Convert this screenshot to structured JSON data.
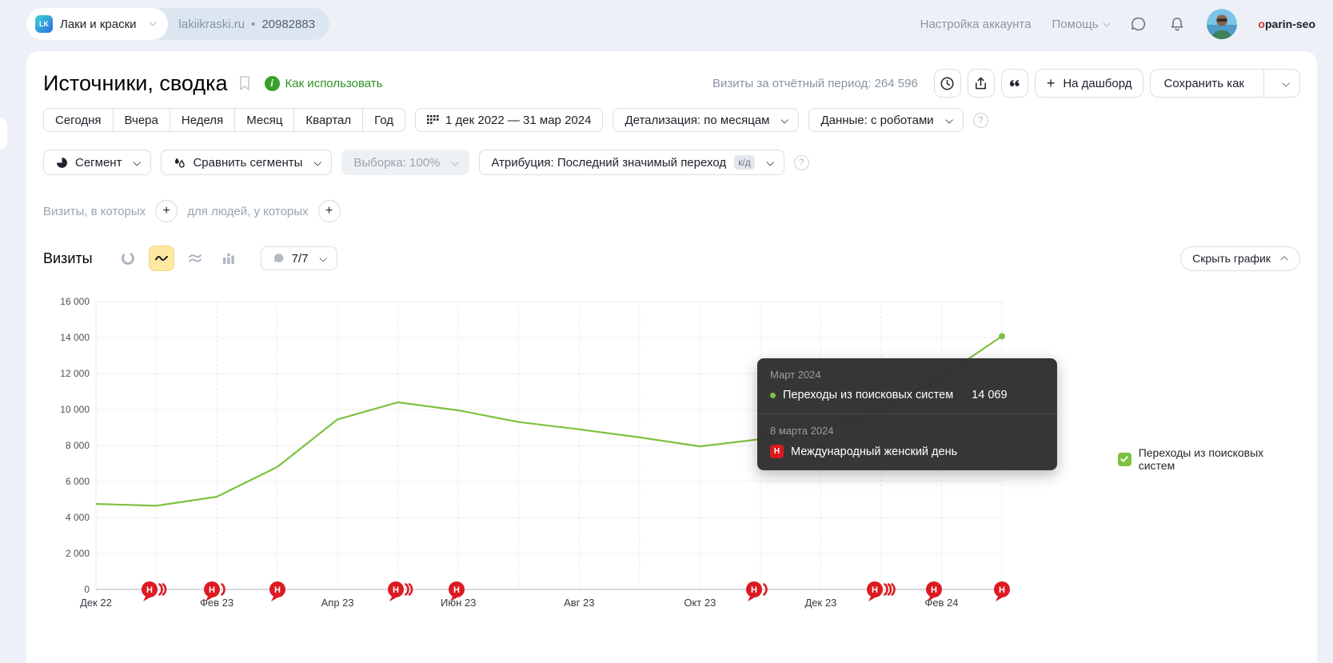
{
  "topbar": {
    "counter_initials": "LK",
    "counter_name": "Лаки и краски",
    "site": "lakiikraski.ru",
    "dot": "•",
    "counter_id": "20982883",
    "account_settings": "Настройка аккаунта",
    "help": "Помощь",
    "login_first": "o",
    "login_rest": "parin-seo"
  },
  "header": {
    "title": "Источники, сводка",
    "how_to_use": "Как использовать",
    "visits_period": "Визиты за отчётный период: 264 596",
    "dashboard_button": "На дашборд",
    "save_as_button": "Сохранить как"
  },
  "filters": {
    "quick_ranges": [
      "Сегодня",
      "Вчера",
      "Неделя",
      "Месяц",
      "Квартал",
      "Год"
    ],
    "date_range": "1 дек 2022 — 31 мар 2024",
    "detalization": "Детализация: по месяцам",
    "data_mode": "Данные: с роботами",
    "segment": "Сегмент",
    "compare_segments": "Сравнить сегменты",
    "sampling": "Выборка: 100%",
    "attribution": "Атрибуция: Последний значимый переход",
    "attribution_badge": "к/д",
    "visits_in_which": "Визиты, в которых",
    "for_people_which": "для людей, у которых"
  },
  "chart_header": {
    "metric": "Визиты",
    "goals_selector": "7/7",
    "hide_chart": "Скрыть график"
  },
  "tooltip": {
    "period": "Март 2024",
    "series_label": "Переходы из поисковых систем",
    "value": "14 069",
    "holiday_date": "8 марта 2024",
    "holiday_badge": "Н",
    "holiday_label": "Международный женский день"
  },
  "legend": {
    "label": "Переходы из поисковых систем"
  },
  "icons": {
    "plus": "+",
    "help": "?",
    "info": "i"
  },
  "chart_data": {
    "type": "line",
    "title": "Визиты",
    "x": [
      "Дек 22",
      "Янв 23",
      "Фев 23",
      "Мар 23",
      "Апр 23",
      "Май 23",
      "Июн 23",
      "Июл 23",
      "Авг 23",
      "Сен 23",
      "Окт 23",
      "Ноя 23",
      "Дек 23",
      "Янв 24",
      "Фев 24",
      "Мар 24"
    ],
    "series": [
      {
        "name": "Переходы из поисковых систем",
        "color": "#7dc142",
        "values": [
          4750,
          4650,
          5150,
          6800,
          9450,
          10400,
          9950,
          9300,
          8900,
          8450,
          7950,
          8350,
          8900,
          9900,
          11800,
          14069
        ]
      }
    ],
    "ylim": [
      0,
      16000
    ],
    "ytick_step": 2000,
    "yticks": [
      "0",
      "2 000",
      "4 000",
      "6 000",
      "8 000",
      "10 000",
      "12 000",
      "14 000",
      "16 000"
    ],
    "xticks": [
      {
        "i": 0,
        "label": "Дек 22"
      },
      {
        "i": 2,
        "label": "Фев 23"
      },
      {
        "i": 4,
        "label": "Апр 23"
      },
      {
        "i": 6,
        "label": "Июн 23"
      },
      {
        "i": 8,
        "label": "Авг 23"
      },
      {
        "i": 10,
        "label": "Окт 23"
      },
      {
        "i": 12,
        "label": "Дек 23"
      },
      {
        "i": 14,
        "label": "Фев 24"
      }
    ],
    "grid": {
      "horizontal": true,
      "vertical_dashed": true
    },
    "legend_position": "right",
    "holiday_letter": "Н",
    "holiday_color": "#dc1a21",
    "holidays": [
      {
        "i": 0.89,
        "arcs": 2
      },
      {
        "i": 1.92,
        "arcs": 1
      },
      {
        "i": 3.0,
        "arcs": 0
      },
      {
        "i": 4.96,
        "arcs": 2
      },
      {
        "i": 5.97,
        "arcs": 0
      },
      {
        "i": 10.9,
        "arcs": 1
      },
      {
        "i": 12.9,
        "arcs": 3
      },
      {
        "i": 13.87,
        "arcs": 0
      },
      {
        "i": 15,
        "arcs": 0
      }
    ]
  }
}
